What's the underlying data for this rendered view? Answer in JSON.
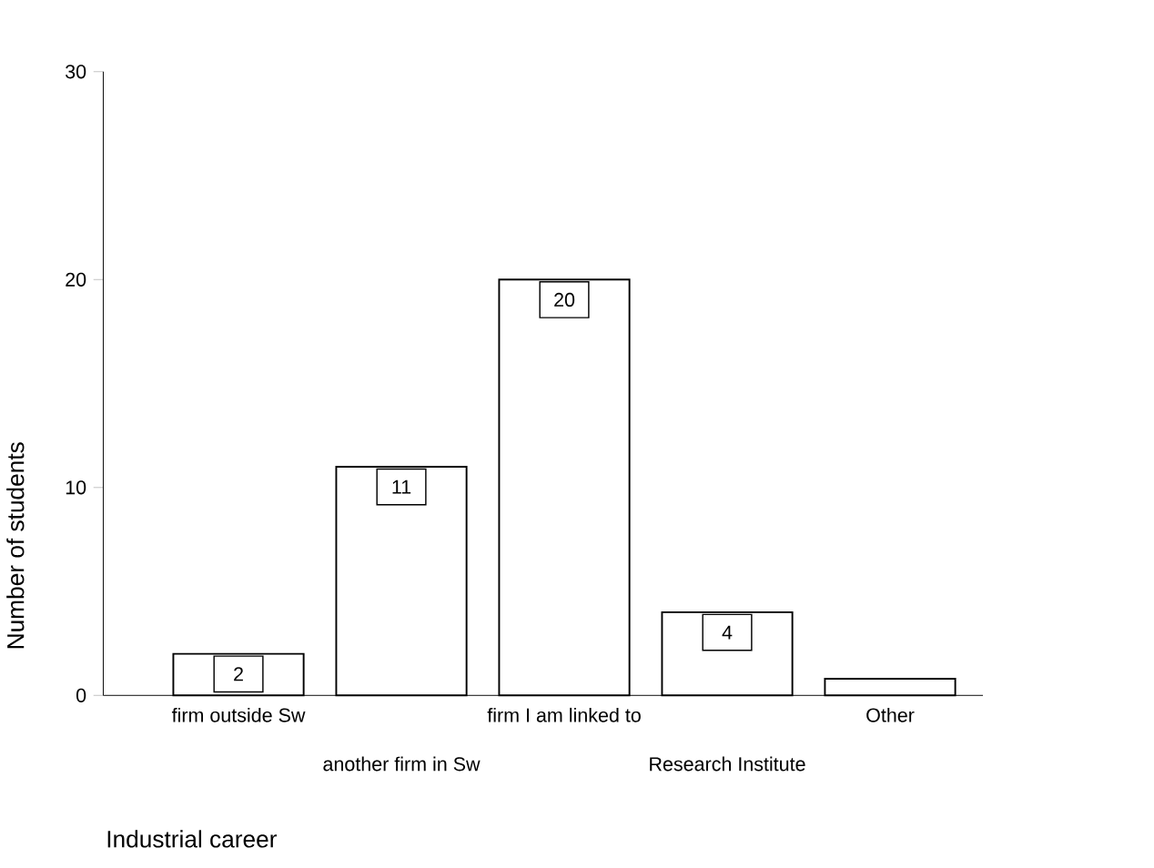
{
  "chart_data": {
    "type": "bar",
    "xlabel": "Industrial career",
    "ylabel": "Number of students",
    "categories": [
      "firm outside Sw",
      "another firm in Sw",
      "firm I am linked to",
      "Research Institute",
      "Other"
    ],
    "values": [
      2,
      11,
      20,
      4,
      0.8
    ],
    "value_labels": [
      "2",
      "11",
      "20",
      "4",
      null
    ],
    "color": "#ffffff",
    "ylim": [
      0,
      30
    ],
    "yticks": [
      0,
      10,
      20,
      30
    ]
  }
}
